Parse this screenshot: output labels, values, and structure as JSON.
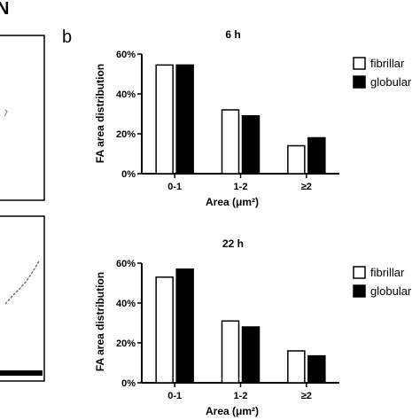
{
  "figure": {
    "left_panel_label": "N",
    "panel_label": "b"
  },
  "chart_data": [
    {
      "type": "bar",
      "title": "6 h",
      "xlabel": "Area (μm²)",
      "ylabel": "FA area distribution",
      "categories": [
        "0-1",
        "1-2",
        "≥2"
      ],
      "ylim": [
        0,
        60
      ],
      "yticks": [
        "0%",
        "20%",
        "40%",
        "60%"
      ],
      "legend_position": "right",
      "series": [
        {
          "name": "fibrillar",
          "values": [
            54.5,
            32,
            14
          ],
          "fill": "#ffffff"
        },
        {
          "name": "globular",
          "values": [
            54.5,
            29,
            18
          ],
          "fill": "#000000"
        }
      ]
    },
    {
      "type": "bar",
      "title": "22 h",
      "xlabel": "Area (μm²)",
      "ylabel": "FA area distribution",
      "categories": [
        "0-1",
        "1-2",
        "≥2"
      ],
      "ylim": [
        0,
        60
      ],
      "yticks": [
        "0%",
        "20%",
        "40%",
        "60%"
      ],
      "legend_position": "right",
      "series": [
        {
          "name": "fibrillar",
          "values": [
            53,
            31,
            16
          ],
          "fill": "#ffffff"
        },
        {
          "name": "globular",
          "values": [
            57,
            28,
            13.5
          ],
          "fill": "#000000"
        }
      ]
    }
  ]
}
